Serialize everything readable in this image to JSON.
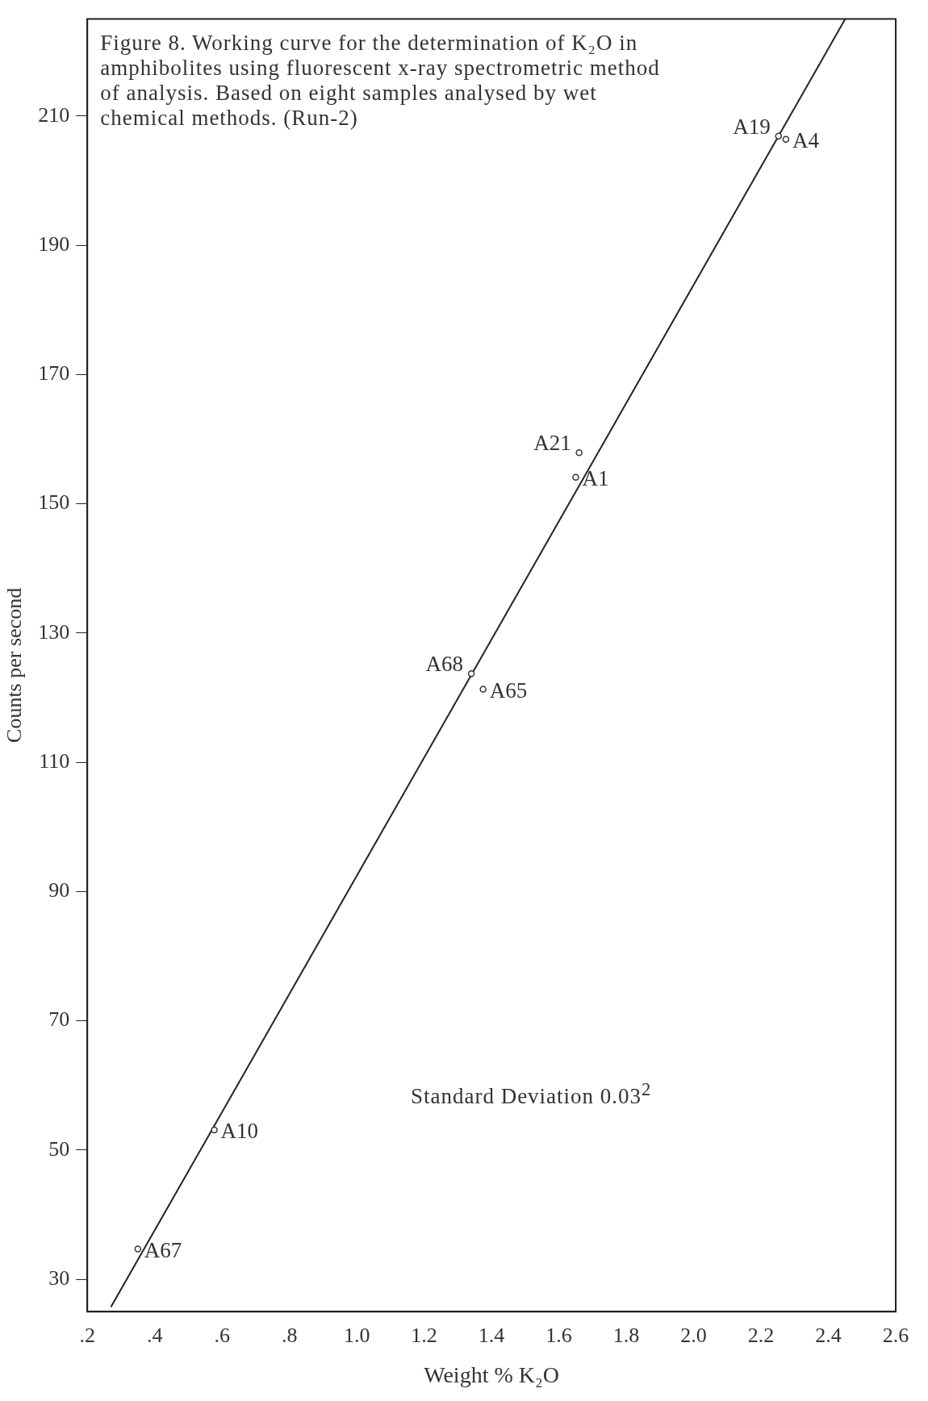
{
  "chart_data": {
    "type": "scatter",
    "title": "Figure 8.  Working curve for the determination of K₂O in amphibolites using fluorescent x-ray spectrometric method of analysis.  Based on eight samples analysed by wet chemical methods.  (Run-2)",
    "xlabel": "Weight % K₂O",
    "ylabel": "Counts per second",
    "series": [
      {
        "marker": "circle",
        "color": "#333333",
        "x": [
          0.35,
          0.577,
          1.34,
          1.375,
          1.65,
          1.66,
          2.252,
          2.274
        ],
        "values": [
          34.7,
          53.1,
          123.7,
          121.3,
          154.1,
          157.9,
          206.9,
          206.4
        ]
      },
      {
        "type": "line",
        "marker": "none",
        "color": "#222222",
        "x": [
          0.27,
          2.45
        ],
        "values": [
          25.7,
          225
        ]
      }
    ],
    "xlim": [
      0.2,
      2.6
    ],
    "ylim": [
      25,
      225
    ],
    "xticks": [
      {
        "value": 0.2,
        "label": ".2"
      },
      {
        "value": 0.4,
        "label": ".4"
      },
      {
        "value": 0.6,
        "label": ".6"
      },
      {
        "value": 0.8,
        "label": ".8"
      },
      {
        "value": 1,
        "label": "1.0"
      },
      1.2,
      1.4,
      1.6,
      1.8,
      {
        "value": 2,
        "label": "2.0"
      },
      2.2,
      2.4,
      2.6
    ],
    "yticks": [
      30,
      50,
      70,
      90,
      110,
      130,
      150,
      170,
      190,
      210
    ],
    "grid": false,
    "legend": false,
    "annotations": [
      {
        "text": "A67",
        "x": 0.35,
        "y": 34.7
      },
      {
        "text": "A10",
        "x": 0.577,
        "y": 53.1
      },
      {
        "text": "A68",
        "x": 1.34,
        "y": 123.7
      },
      {
        "text": "A65",
        "x": 1.375,
        "y": 121.3
      },
      {
        "text": "A1",
        "x": 1.65,
        "y": 154.1
      },
      {
        "text": "A21",
        "x": 1.66,
        "y": 157.9
      },
      {
        "text": "A19",
        "x": 2.252,
        "y": 206.9
      },
      {
        "text": "A4",
        "x": 2.274,
        "y": 206.4
      },
      "Standard Deviation 0.03$^{2}$"
    ]
  }
}
